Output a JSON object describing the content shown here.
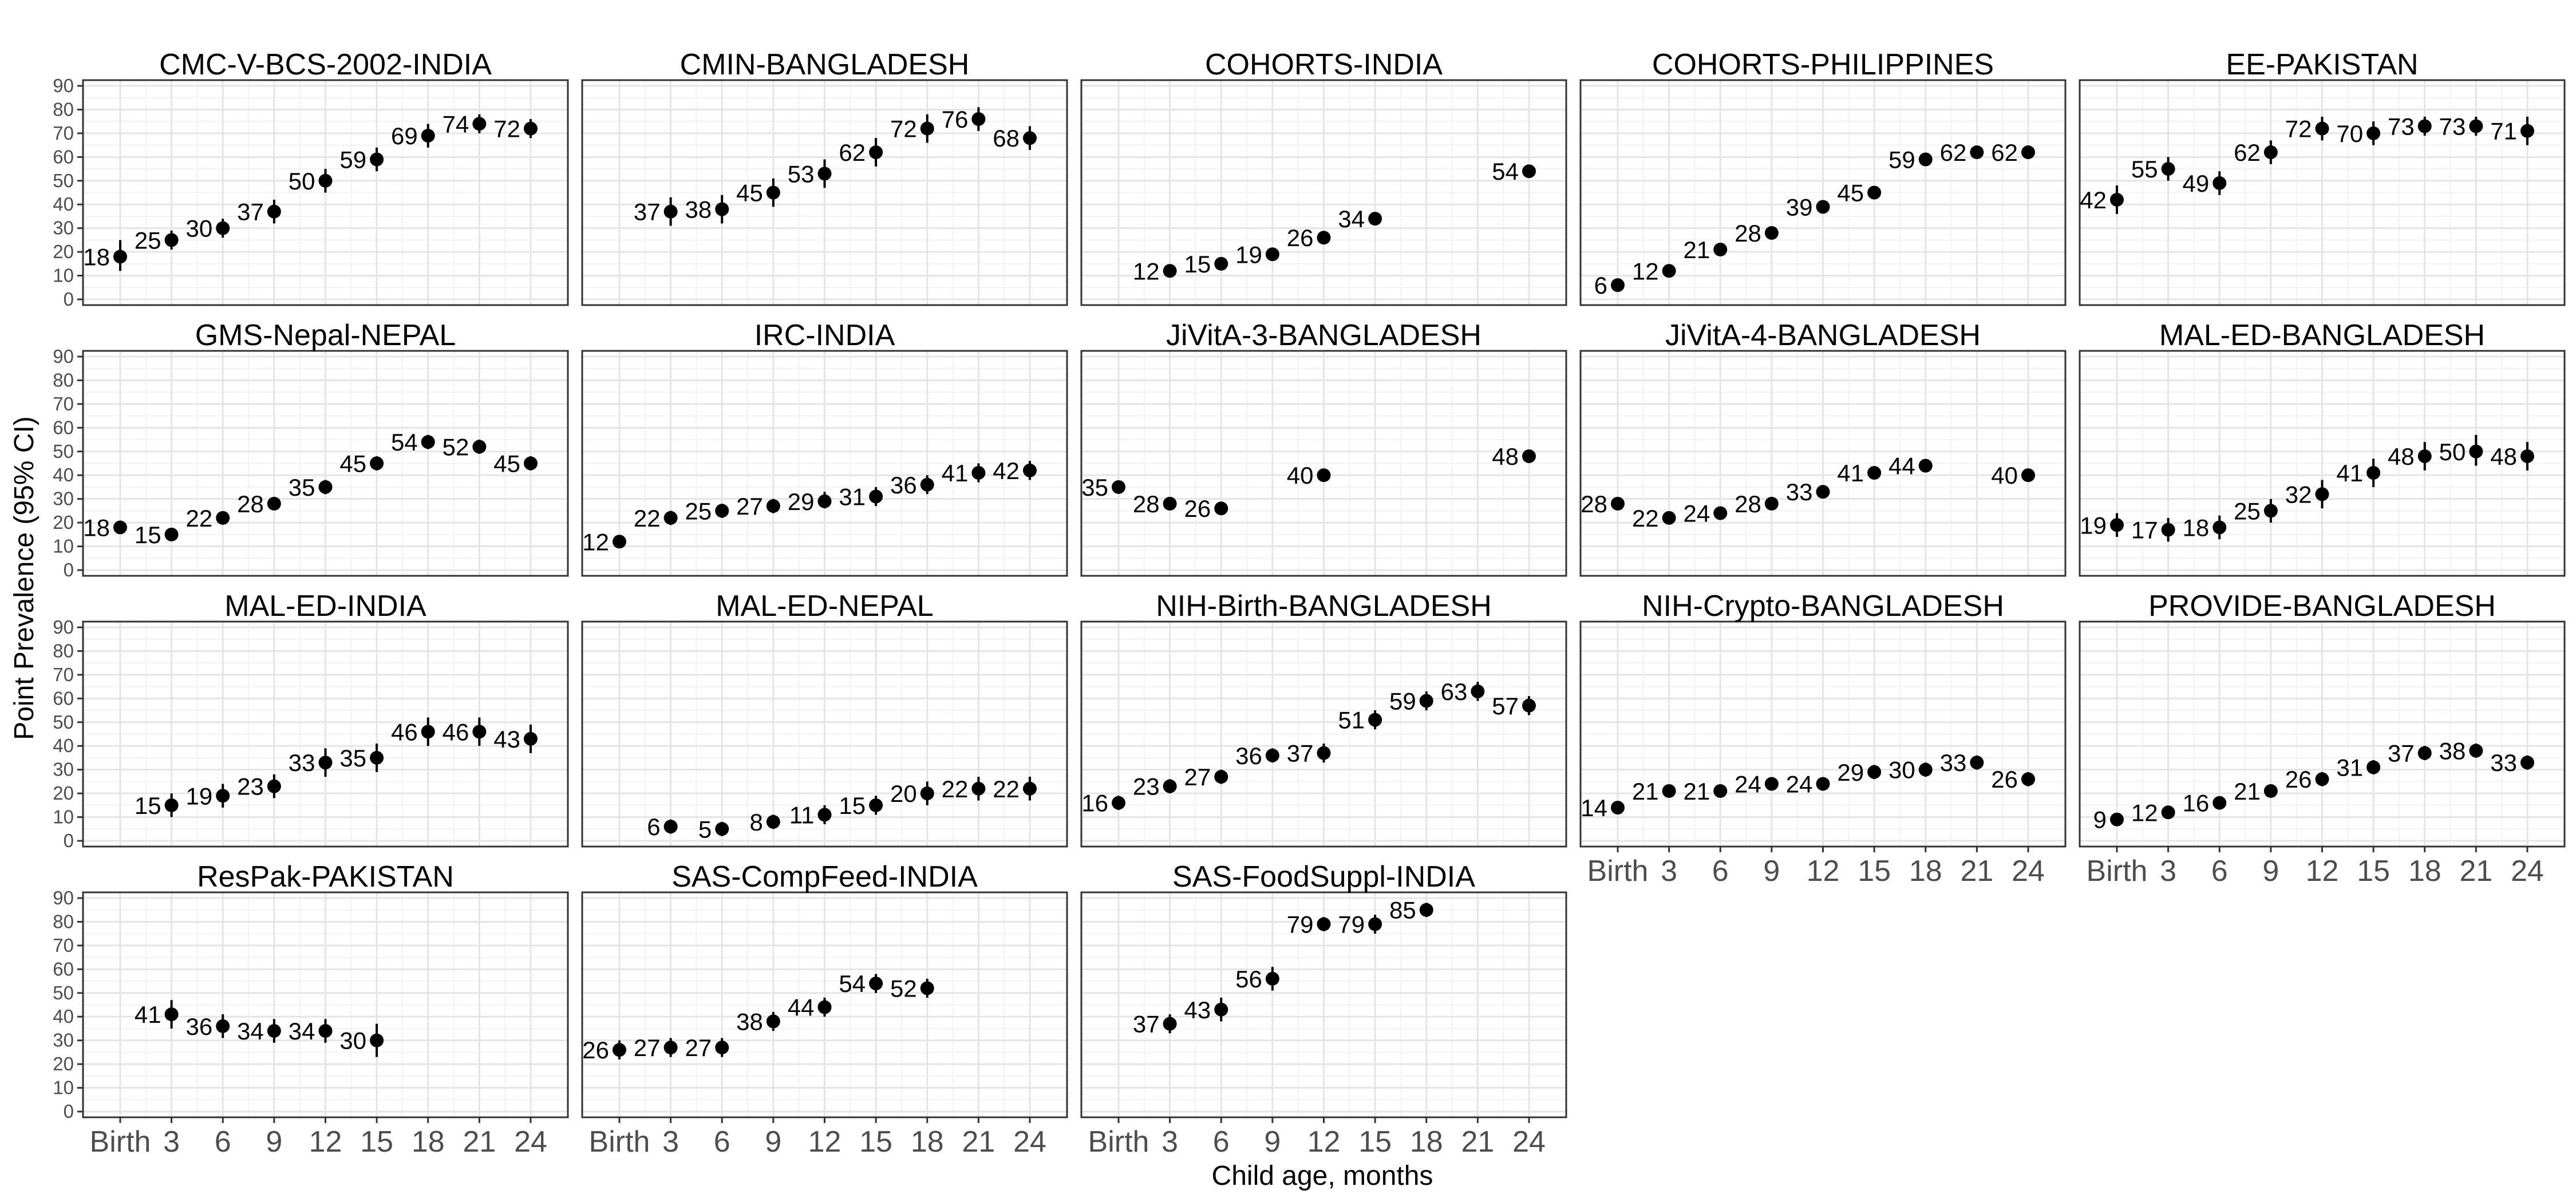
{
  "figure": {
    "ylabel": "Point Prevalence (95% CI)",
    "xlabel": "Child age, months"
  },
  "colors": {
    "point": "#000000",
    "grid_major": "#e5e5e5",
    "grid_minor": "#f2f2f2",
    "panel_border": "#333333"
  },
  "chart_data": {
    "type": "scatter",
    "layout": "facet-grid 4x5",
    "error_bars": "95% CI",
    "x_categories": [
      "Birth",
      "3",
      "6",
      "9",
      "12",
      "15",
      "18",
      "21",
      "24"
    ],
    "y_ticks": [
      0,
      10,
      20,
      30,
      40,
      50,
      60,
      70,
      80,
      90
    ],
    "ylim": [
      0,
      90
    ],
    "ylabel": "Point Prevalence (95% CI)",
    "xlabel": "Child age, months",
    "panels": [
      {
        "title": "CMC-V-BCS-2002-INDIA",
        "points": [
          {
            "x": 0,
            "y": 18,
            "lo": 12,
            "hi": 25
          },
          {
            "x": 3,
            "y": 25,
            "lo": 21,
            "hi": 29
          },
          {
            "x": 6,
            "y": 30,
            "lo": 26,
            "hi": 34
          },
          {
            "x": 9,
            "y": 37,
            "lo": 32,
            "hi": 42
          },
          {
            "x": 12,
            "y": 50,
            "lo": 45,
            "hi": 55
          },
          {
            "x": 15,
            "y": 59,
            "lo": 54,
            "hi": 64
          },
          {
            "x": 18,
            "y": 69,
            "lo": 64,
            "hi": 74
          },
          {
            "x": 21,
            "y": 74,
            "lo": 70,
            "hi": 78
          },
          {
            "x": 24,
            "y": 72,
            "lo": 68,
            "hi": 76
          }
        ]
      },
      {
        "title": "CMIN-BANGLADESH",
        "points": [
          {
            "x": 3,
            "y": 37,
            "lo": 31,
            "hi": 43
          },
          {
            "x": 6,
            "y": 38,
            "lo": 32,
            "hi": 44
          },
          {
            "x": 9,
            "y": 45,
            "lo": 39,
            "hi": 51
          },
          {
            "x": 12,
            "y": 53,
            "lo": 47,
            "hi": 59
          },
          {
            "x": 15,
            "y": 62,
            "lo": 56,
            "hi": 68
          },
          {
            "x": 18,
            "y": 72,
            "lo": 66,
            "hi": 78
          },
          {
            "x": 21,
            "y": 76,
            "lo": 71,
            "hi": 81
          },
          {
            "x": 24,
            "y": 68,
            "lo": 63,
            "hi": 73
          }
        ]
      },
      {
        "title": "COHORTS-INDIA",
        "points": [
          {
            "x": 3,
            "y": 12,
            "lo": 11,
            "hi": 13
          },
          {
            "x": 6,
            "y": 15,
            "lo": 14,
            "hi": 16
          },
          {
            "x": 9,
            "y": 19,
            "lo": 18,
            "hi": 20
          },
          {
            "x": 12,
            "y": 26,
            "lo": 25,
            "hi": 27
          },
          {
            "x": 15,
            "y": 34,
            "lo": 33,
            "hi": 35
          },
          {
            "x": 24,
            "y": 54,
            "lo": 53,
            "hi": 55
          }
        ]
      },
      {
        "title": "COHORTS-PHILIPPINES",
        "points": [
          {
            "x": 0,
            "y": 6,
            "lo": 5,
            "hi": 7
          },
          {
            "x": 3,
            "y": 12,
            "lo": 11,
            "hi": 13
          },
          {
            "x": 6,
            "y": 21,
            "lo": 20,
            "hi": 22
          },
          {
            "x": 9,
            "y": 28,
            "lo": 27,
            "hi": 29
          },
          {
            "x": 12,
            "y": 39,
            "lo": 38,
            "hi": 40
          },
          {
            "x": 15,
            "y": 45,
            "lo": 44,
            "hi": 46
          },
          {
            "x": 18,
            "y": 59,
            "lo": 58,
            "hi": 60
          },
          {
            "x": 21,
            "y": 62,
            "lo": 61,
            "hi": 63
          },
          {
            "x": 24,
            "y": 62,
            "lo": 61,
            "hi": 63
          }
        ]
      },
      {
        "title": "EE-PAKISTAN",
        "points": [
          {
            "x": 0,
            "y": 42,
            "lo": 36,
            "hi": 48
          },
          {
            "x": 3,
            "y": 55,
            "lo": 50,
            "hi": 60
          },
          {
            "x": 6,
            "y": 49,
            "lo": 44,
            "hi": 54
          },
          {
            "x": 9,
            "y": 62,
            "lo": 57,
            "hi": 67
          },
          {
            "x": 12,
            "y": 72,
            "lo": 67,
            "hi": 77
          },
          {
            "x": 15,
            "y": 70,
            "lo": 65,
            "hi": 75
          },
          {
            "x": 18,
            "y": 73,
            "lo": 69,
            "hi": 77
          },
          {
            "x": 21,
            "y": 73,
            "lo": 69,
            "hi": 77
          },
          {
            "x": 24,
            "y": 71,
            "lo": 65,
            "hi": 77
          }
        ]
      },
      {
        "title": "GMS-Nepal-NEPAL",
        "points": [
          {
            "x": 0,
            "y": 18,
            "lo": 16,
            "hi": 20
          },
          {
            "x": 3,
            "y": 15,
            "lo": 13,
            "hi": 17
          },
          {
            "x": 6,
            "y": 22,
            "lo": 20,
            "hi": 24
          },
          {
            "x": 9,
            "y": 28,
            "lo": 26,
            "hi": 30
          },
          {
            "x": 12,
            "y": 35,
            "lo": 32,
            "hi": 38
          },
          {
            "x": 15,
            "y": 45,
            "lo": 42,
            "hi": 48
          },
          {
            "x": 18,
            "y": 54,
            "lo": 51,
            "hi": 57
          },
          {
            "x": 21,
            "y": 52,
            "lo": 49,
            "hi": 55
          },
          {
            "x": 24,
            "y": 45,
            "lo": 42,
            "hi": 48
          }
        ]
      },
      {
        "title": "IRC-INDIA",
        "points": [
          {
            "x": 0,
            "y": 12,
            "lo": 10,
            "hi": 14
          },
          {
            "x": 3,
            "y": 22,
            "lo": 19,
            "hi": 25
          },
          {
            "x": 6,
            "y": 25,
            "lo": 22,
            "hi": 28
          },
          {
            "x": 9,
            "y": 27,
            "lo": 24,
            "hi": 30
          },
          {
            "x": 12,
            "y": 29,
            "lo": 26,
            "hi": 33
          },
          {
            "x": 15,
            "y": 31,
            "lo": 27,
            "hi": 35
          },
          {
            "x": 18,
            "y": 36,
            "lo": 32,
            "hi": 40
          },
          {
            "x": 21,
            "y": 41,
            "lo": 37,
            "hi": 45
          },
          {
            "x": 24,
            "y": 42,
            "lo": 38,
            "hi": 46
          }
        ]
      },
      {
        "title": "JiVitA-3-BANGLADESH",
        "points": [
          {
            "x": 0,
            "y": 35,
            "lo": 34,
            "hi": 36
          },
          {
            "x": 3,
            "y": 28,
            "lo": 27,
            "hi": 29
          },
          {
            "x": 6,
            "y": 26,
            "lo": 25,
            "hi": 27
          },
          {
            "x": 12,
            "y": 40,
            "lo": 39,
            "hi": 41
          },
          {
            "x": 24,
            "y": 48,
            "lo": 47,
            "hi": 49
          }
        ]
      },
      {
        "title": "JiVitA-4-BANGLADESH",
        "points": [
          {
            "x": 0,
            "y": 28,
            "lo": 27,
            "hi": 29
          },
          {
            "x": 3,
            "y": 22,
            "lo": 21,
            "hi": 23
          },
          {
            "x": 6,
            "y": 24,
            "lo": 23,
            "hi": 25
          },
          {
            "x": 9,
            "y": 28,
            "lo": 27,
            "hi": 29
          },
          {
            "x": 12,
            "y": 33,
            "lo": 32,
            "hi": 34
          },
          {
            "x": 15,
            "y": 41,
            "lo": 40,
            "hi": 42
          },
          {
            "x": 18,
            "y": 44,
            "lo": 43,
            "hi": 45
          },
          {
            "x": 24,
            "y": 40,
            "lo": 39,
            "hi": 41
          }
        ]
      },
      {
        "title": "MAL-ED-BANGLADESH",
        "points": [
          {
            "x": 0,
            "y": 19,
            "lo": 14,
            "hi": 24
          },
          {
            "x": 3,
            "y": 17,
            "lo": 12,
            "hi": 22
          },
          {
            "x": 6,
            "y": 18,
            "lo": 13,
            "hi": 23
          },
          {
            "x": 9,
            "y": 25,
            "lo": 20,
            "hi": 30
          },
          {
            "x": 12,
            "y": 32,
            "lo": 26,
            "hi": 38
          },
          {
            "x": 15,
            "y": 41,
            "lo": 35,
            "hi": 47
          },
          {
            "x": 18,
            "y": 48,
            "lo": 42,
            "hi": 54
          },
          {
            "x": 21,
            "y": 50,
            "lo": 44,
            "hi": 57
          },
          {
            "x": 24,
            "y": 48,
            "lo": 42,
            "hi": 54
          }
        ]
      },
      {
        "title": "MAL-ED-INDIA",
        "points": [
          {
            "x": 3,
            "y": 15,
            "lo": 10,
            "hi": 20
          },
          {
            "x": 6,
            "y": 19,
            "lo": 14,
            "hi": 24
          },
          {
            "x": 9,
            "y": 23,
            "lo": 18,
            "hi": 28
          },
          {
            "x": 12,
            "y": 33,
            "lo": 27,
            "hi": 39
          },
          {
            "x": 15,
            "y": 35,
            "lo": 29,
            "hi": 41
          },
          {
            "x": 18,
            "y": 46,
            "lo": 40,
            "hi": 52
          },
          {
            "x": 21,
            "y": 46,
            "lo": 40,
            "hi": 52
          },
          {
            "x": 24,
            "y": 43,
            "lo": 37,
            "hi": 49
          }
        ]
      },
      {
        "title": "MAL-ED-NEPAL",
        "points": [
          {
            "x": 3,
            "y": 6,
            "lo": 3,
            "hi": 9
          },
          {
            "x": 6,
            "y": 5,
            "lo": 2,
            "hi": 8
          },
          {
            "x": 9,
            "y": 8,
            "lo": 5,
            "hi": 11
          },
          {
            "x": 12,
            "y": 11,
            "lo": 7,
            "hi": 15
          },
          {
            "x": 15,
            "y": 15,
            "lo": 11,
            "hi": 19
          },
          {
            "x": 18,
            "y": 20,
            "lo": 15,
            "hi": 25
          },
          {
            "x": 21,
            "y": 22,
            "lo": 17,
            "hi": 27
          },
          {
            "x": 24,
            "y": 22,
            "lo": 17,
            "hi": 27
          }
        ]
      },
      {
        "title": "NIH-Birth-BANGLADESH",
        "points": [
          {
            "x": 0,
            "y": 16,
            "lo": 13,
            "hi": 19
          },
          {
            "x": 3,
            "y": 23,
            "lo": 20,
            "hi": 26
          },
          {
            "x": 6,
            "y": 27,
            "lo": 24,
            "hi": 30
          },
          {
            "x": 9,
            "y": 36,
            "lo": 33,
            "hi": 39
          },
          {
            "x": 12,
            "y": 37,
            "lo": 33,
            "hi": 41
          },
          {
            "x": 15,
            "y": 51,
            "lo": 47,
            "hi": 55
          },
          {
            "x": 18,
            "y": 59,
            "lo": 55,
            "hi": 63
          },
          {
            "x": 21,
            "y": 63,
            "lo": 59,
            "hi": 67
          },
          {
            "x": 24,
            "y": 57,
            "lo": 53,
            "hi": 61
          }
        ]
      },
      {
        "title": "NIH-Crypto-BANGLADESH",
        "points": [
          {
            "x": 0,
            "y": 14,
            "lo": 12,
            "hi": 16
          },
          {
            "x": 3,
            "y": 21,
            "lo": 19,
            "hi": 23
          },
          {
            "x": 6,
            "y": 21,
            "lo": 19,
            "hi": 23
          },
          {
            "x": 9,
            "y": 24,
            "lo": 22,
            "hi": 26
          },
          {
            "x": 12,
            "y": 24,
            "lo": 22,
            "hi": 26
          },
          {
            "x": 15,
            "y": 29,
            "lo": 26,
            "hi": 32
          },
          {
            "x": 18,
            "y": 30,
            "lo": 27,
            "hi": 33
          },
          {
            "x": 21,
            "y": 33,
            "lo": 30,
            "hi": 36
          },
          {
            "x": 24,
            "y": 26,
            "lo": 23,
            "hi": 29
          }
        ]
      },
      {
        "title": "PROVIDE-BANGLADESH",
        "points": [
          {
            "x": 0,
            "y": 9,
            "lo": 7,
            "hi": 11
          },
          {
            "x": 3,
            "y": 12,
            "lo": 10,
            "hi": 14
          },
          {
            "x": 6,
            "y": 16,
            "lo": 14,
            "hi": 18
          },
          {
            "x": 9,
            "y": 21,
            "lo": 19,
            "hi": 23
          },
          {
            "x": 12,
            "y": 26,
            "lo": 23,
            "hi": 29
          },
          {
            "x": 15,
            "y": 31,
            "lo": 28,
            "hi": 34
          },
          {
            "x": 18,
            "y": 37,
            "lo": 34,
            "hi": 40
          },
          {
            "x": 21,
            "y": 38,
            "lo": 35,
            "hi": 41
          },
          {
            "x": 24,
            "y": 33,
            "lo": 30,
            "hi": 36
          }
        ]
      },
      {
        "title": "ResPak-PAKISTAN",
        "points": [
          {
            "x": 3,
            "y": 41,
            "lo": 35,
            "hi": 47
          },
          {
            "x": 6,
            "y": 36,
            "lo": 31,
            "hi": 41
          },
          {
            "x": 9,
            "y": 34,
            "lo": 29,
            "hi": 39
          },
          {
            "x": 12,
            "y": 34,
            "lo": 29,
            "hi": 39
          },
          {
            "x": 15,
            "y": 30,
            "lo": 23,
            "hi": 37
          }
        ]
      },
      {
        "title": "SAS-CompFeed-INDIA",
        "points": [
          {
            "x": 0,
            "y": 26,
            "lo": 22,
            "hi": 30
          },
          {
            "x": 3,
            "y": 27,
            "lo": 23,
            "hi": 31
          },
          {
            "x": 6,
            "y": 27,
            "lo": 23,
            "hi": 31
          },
          {
            "x": 9,
            "y": 38,
            "lo": 34,
            "hi": 42
          },
          {
            "x": 12,
            "y": 44,
            "lo": 40,
            "hi": 48
          },
          {
            "x": 15,
            "y": 54,
            "lo": 50,
            "hi": 58
          },
          {
            "x": 18,
            "y": 52,
            "lo": 48,
            "hi": 56
          }
        ]
      },
      {
        "title": "SAS-FoodSuppl-INDIA",
        "points": [
          {
            "x": 3,
            "y": 37,
            "lo": 33,
            "hi": 41
          },
          {
            "x": 6,
            "y": 43,
            "lo": 38,
            "hi": 48
          },
          {
            "x": 9,
            "y": 56,
            "lo": 51,
            "hi": 61
          },
          {
            "x": 12,
            "y": 79,
            "lo": 76,
            "hi": 82
          },
          {
            "x": 15,
            "y": 79,
            "lo": 75,
            "hi": 83
          },
          {
            "x": 18,
            "y": 85,
            "lo": 82,
            "hi": 88
          }
        ]
      }
    ]
  }
}
